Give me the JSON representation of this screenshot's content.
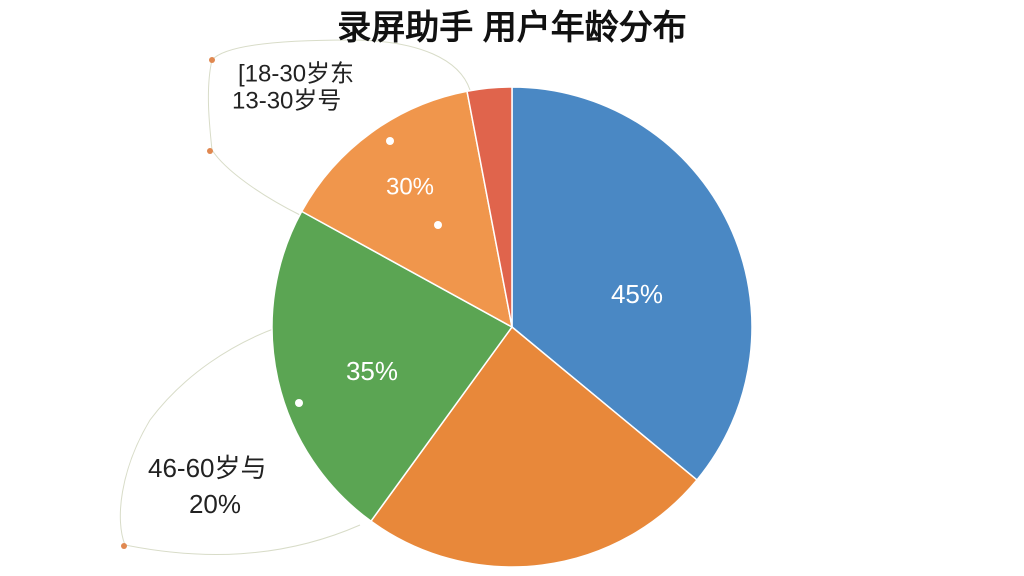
{
  "chart_data": {
    "type": "pie",
    "title": "录屏助手  用户年龄分布",
    "values": [
      36,
      24,
      23,
      14,
      3
    ],
    "colors": [
      "#4a88c4",
      "#e8883a",
      "#5ba553",
      "#f0964c",
      "#e0644c"
    ],
    "annotations": [
      "[18-30岁东",
      "13-30岁号",
      "30%",
      "45%",
      "35%",
      "46-60岁与",
      "20%"
    ]
  }
}
